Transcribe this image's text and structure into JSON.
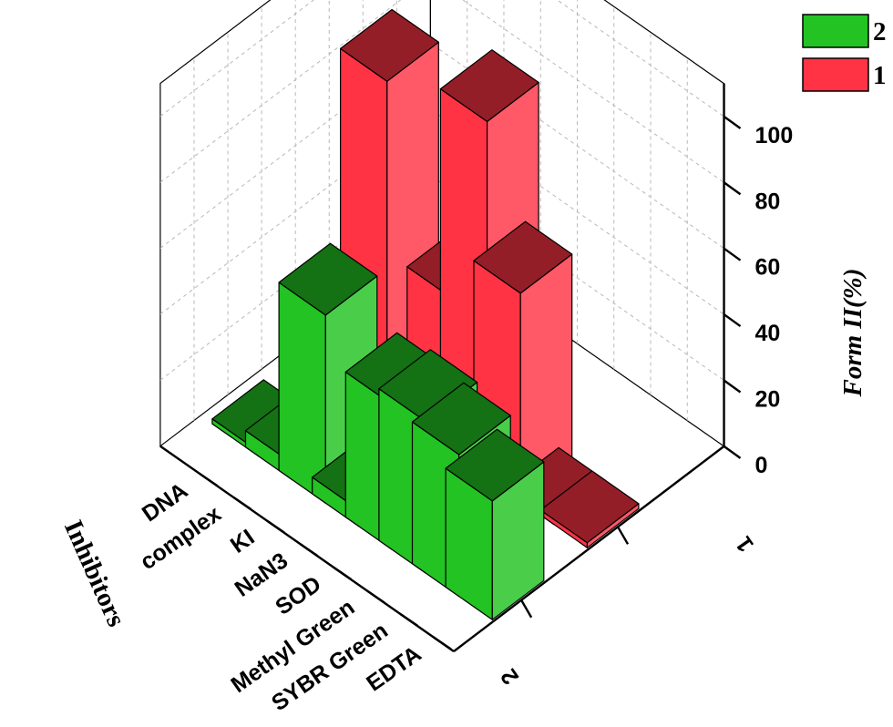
{
  "chart_data": {
    "type": "bar",
    "title": "",
    "categories": [
      "EDTA",
      "SYBR Green",
      "Methyl Green",
      "SOD",
      "NaN3",
      "KI",
      "complex",
      "DNA"
    ],
    "depth_categories": [
      "1",
      "2"
    ],
    "series": [
      {
        "name": "2",
        "color": "#22c322",
        "values": [
          36,
          43,
          46,
          44,
          5,
          57,
          5,
          0
        ]
      },
      {
        "name": "1",
        "color": "#ff3344",
        "values": [
          0,
          0,
          63,
          108,
          47,
          8,
          99,
          4
        ]
      }
    ],
    "xlabel": "Inhibitors",
    "ylabel": "",
    "zlabel": "Form II(%)",
    "zlim": [
      0,
      110
    ],
    "zticks": [
      0,
      20,
      40,
      60,
      80,
      100
    ],
    "grid": true,
    "legend_position": "top-right"
  },
  "legend": {
    "items": [
      {
        "label": "2",
        "color": "#22c322"
      },
      {
        "label": "1",
        "color": "#ff3344"
      }
    ]
  }
}
